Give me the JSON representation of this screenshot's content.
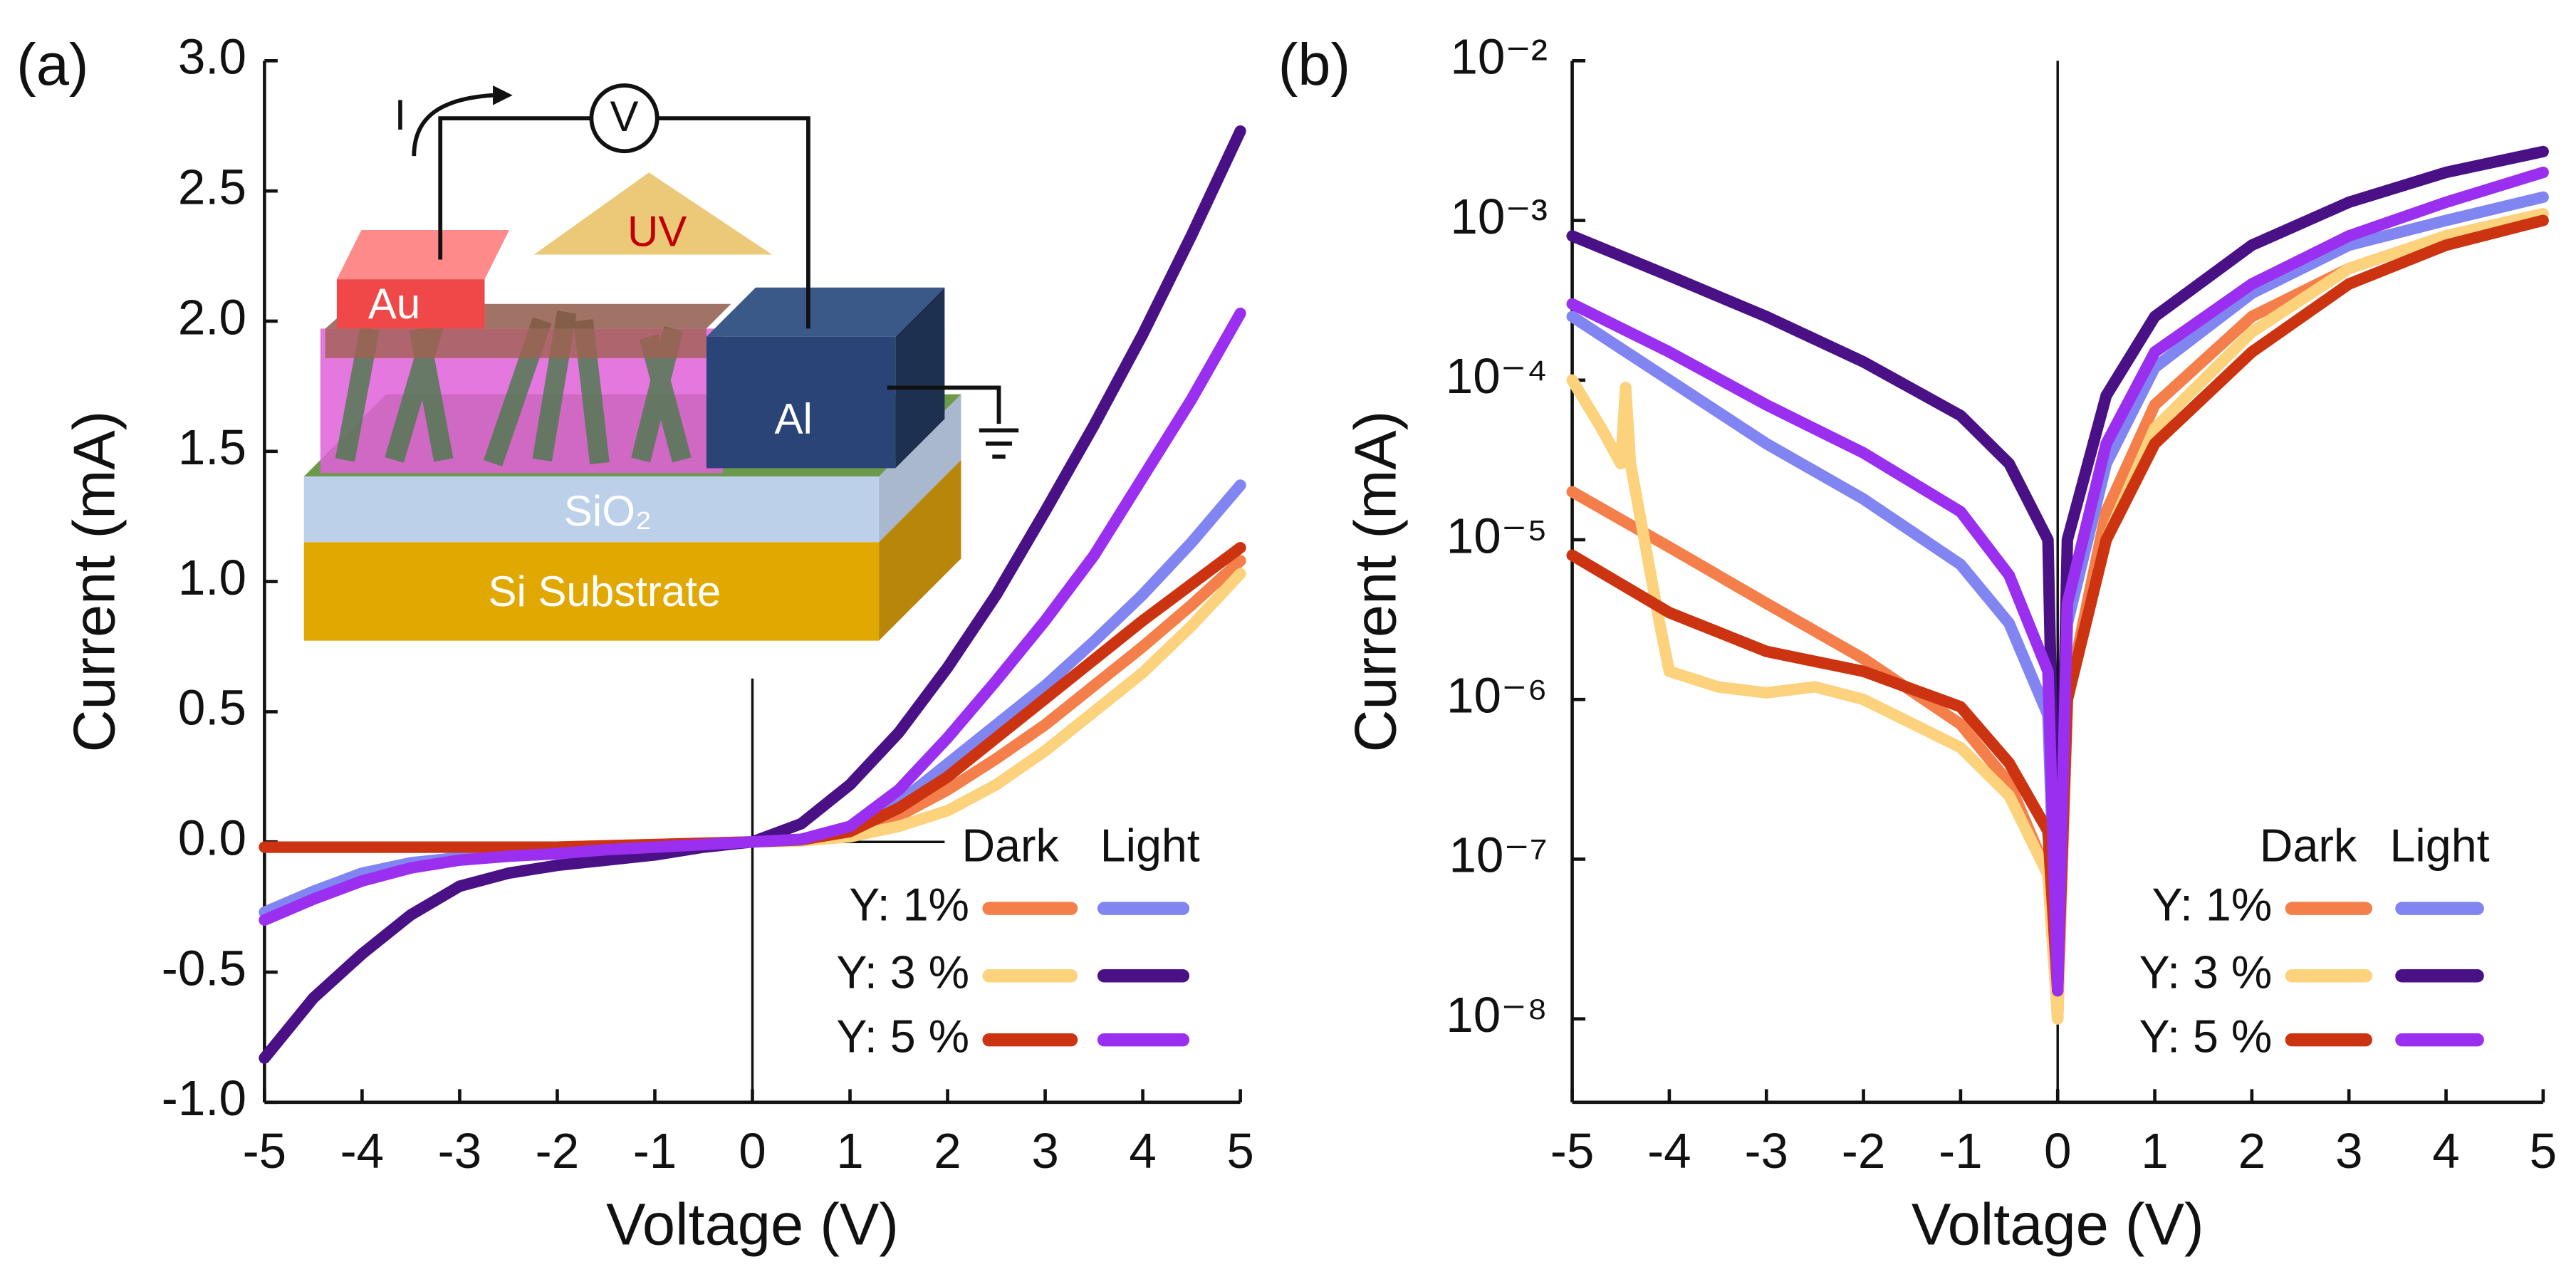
{
  "chart_data": [
    {
      "type": "line",
      "panel": "(a)",
      "xlabel": "Voltage (V)",
      "ylabel": "Current (mA)",
      "xlim": [
        -5,
        5
      ],
      "xticks": [
        -5,
        -4,
        -3,
        -2,
        -1,
        0,
        1,
        2,
        3,
        4,
        5
      ],
      "ylim": [
        -1,
        3
      ],
      "yticks": [
        {
          "value": -1,
          "label": "-1.0"
        },
        {
          "value": -0.5,
          "label": "-0.5"
        },
        {
          "value": 0,
          "label": "0.0"
        },
        {
          "value": 0.5,
          "label": "0.5"
        },
        {
          "value": 1,
          "label": "1.0"
        },
        {
          "value": 1.5,
          "label": "1.5"
        },
        {
          "value": 2,
          "label": "2.0"
        },
        {
          "value": 2.5,
          "label": "2.5"
        },
        {
          "value": 3,
          "label": "3.0"
        }
      ],
      "legend": {
        "columns": [
          "Dark",
          "Light"
        ],
        "rows": [
          "Y: 1%",
          "Y: 3 %",
          "Y: 5 %"
        ]
      },
      "diagram": {
        "current": "I",
        "meter": "V",
        "light": "UV",
        "electrode_1": "Au",
        "electrode_2": "Al",
        "layer": "SiO₂",
        "substrate": "Si Substrate"
      },
      "x": [
        -5,
        -4.5,
        -4,
        -3.5,
        -3,
        -2.5,
        -2,
        -1.5,
        -1,
        -0.5,
        0,
        0.5,
        1,
        1.5,
        2,
        2.5,
        3,
        3.5,
        4,
        4.5,
        5
      ],
      "series": [
        {
          "color": "#f47f4a",
          "values": [
            -0.02,
            -0.02,
            -0.02,
            -0.02,
            -0.02,
            -0.02,
            -0.02,
            -0.015,
            -0.01,
            -0.005,
            0,
            0.005,
            0.03,
            0.1,
            0.2,
            0.32,
            0.45,
            0.6,
            0.75,
            0.91,
            1.08
          ]
        },
        {
          "color": "#8085f2",
          "values": [
            -0.27,
            -0.19,
            -0.12,
            -0.08,
            -0.06,
            -0.05,
            -0.04,
            -0.03,
            -0.02,
            -0.01,
            0,
            0.01,
            0.05,
            0.15,
            0.3,
            0.45,
            0.6,
            0.77,
            0.95,
            1.15,
            1.37
          ]
        },
        {
          "color": "#fdd27c",
          "values": [
            -0.02,
            -0.02,
            -0.02,
            -0.02,
            -0.02,
            -0.02,
            -0.02,
            -0.015,
            -0.01,
            -0.005,
            0,
            0.004,
            0.02,
            0.06,
            0.12,
            0.22,
            0.35,
            0.5,
            0.65,
            0.83,
            1.03
          ]
        },
        {
          "color": "#4a1187",
          "values": [
            -0.83,
            -0.6,
            -0.43,
            -0.28,
            -0.17,
            -0.12,
            -0.09,
            -0.07,
            -0.05,
            -0.02,
            0,
            0.07,
            0.22,
            0.42,
            0.67,
            0.95,
            1.27,
            1.6,
            1.95,
            2.33,
            2.73
          ]
        },
        {
          "color": "#cc3311",
          "values": [
            -0.02,
            -0.02,
            -0.02,
            -0.02,
            -0.02,
            -0.02,
            -0.02,
            -0.015,
            -0.01,
            -0.005,
            0,
            0.008,
            0.04,
            0.13,
            0.25,
            0.4,
            0.55,
            0.7,
            0.85,
            0.99,
            1.13
          ]
        },
        {
          "color": "#9a2ff0",
          "values": [
            -0.3,
            -0.22,
            -0.15,
            -0.1,
            -0.07,
            -0.055,
            -0.045,
            -0.03,
            -0.02,
            -0.01,
            0,
            0.01,
            0.06,
            0.2,
            0.4,
            0.62,
            0.85,
            1.1,
            1.4,
            1.7,
            2.03
          ]
        }
      ]
    },
    {
      "type": "line",
      "panel": "(b)",
      "xlabel": "Voltage (V)",
      "ylabel": "Current (mA)",
      "log_y": true,
      "xlim": [
        -5,
        5
      ],
      "xticks": [
        -5,
        -4,
        -3,
        -2,
        -1,
        0,
        1,
        2,
        3,
        4,
        5
      ],
      "ylim": [
        3e-09,
        0.01
      ],
      "yticks": [
        {
          "value": 1e-08,
          "label": "10⁻⁸"
        },
        {
          "value": 1e-07,
          "label": "10⁻⁷"
        },
        {
          "value": 1e-06,
          "label": "10⁻⁶"
        },
        {
          "value": 1e-05,
          "label": "10⁻⁵"
        },
        {
          "value": 0.0001,
          "label": "10⁻⁴"
        },
        {
          "value": 0.001,
          "label": "10⁻³"
        },
        {
          "value": 0.01,
          "label": "10⁻²"
        }
      ],
      "legend": {
        "columns": [
          "Dark",
          "Light"
        ],
        "rows": [
          "Y: 1%",
          "Y: 3 %",
          "Y: 5 %"
        ]
      },
      "series": [
        {
          "color": "#f47f4a",
          "x": [
            -5,
            -4,
            -3,
            -2,
            -1,
            -0.5,
            -0.1,
            0,
            0.1,
            0.5,
            1,
            2,
            3,
            4,
            5
          ],
          "values": [
            2e-05,
            9e-06,
            4e-06,
            1.8e-06,
            7e-07,
            3e-07,
            8e-08,
            1e-08,
            1e-06,
            1.5e-05,
            7e-05,
            0.00025,
            0.0005,
            0.0008,
            0.0011
          ]
        },
        {
          "color": "#8085f2",
          "x": [
            -5,
            -4,
            -3,
            -2,
            -1,
            -0.5,
            -0.1,
            0,
            0.1,
            0.5,
            1,
            2,
            3,
            4,
            5
          ],
          "values": [
            0.00025,
            0.0001,
            4e-05,
            1.8e-05,
            7e-06,
            3e-06,
            8e-07,
            1.5e-08,
            3e-06,
            3e-05,
            0.00012,
            0.00035,
            0.0007,
            0.001,
            0.0014
          ]
        },
        {
          "color": "#fdd27c",
          "x": [
            -5,
            -4.7,
            -4.5,
            -4.45,
            -4.4,
            -4.1,
            -4,
            -3.5,
            -3,
            -2.5,
            -2,
            -1,
            -0.5,
            -0.1,
            0,
            0.1,
            0.5,
            1,
            2,
            3,
            4,
            5
          ],
          "values": [
            0.0001,
            5e-05,
            3e-05,
            9e-05,
            3e-05,
            3e-06,
            1.5e-06,
            1.2e-06,
            1.1e-06,
            1.2e-06,
            1e-06,
            5e-07,
            2.5e-07,
            8e-08,
            1e-08,
            1e-06,
            1e-05,
            5e-05,
            0.0002,
            0.0005,
            0.0008,
            0.0011
          ]
        },
        {
          "color": "#4a1187",
          "x": [
            -5,
            -4,
            -3,
            -2,
            -1,
            -0.5,
            -0.1,
            0,
            0.1,
            0.5,
            1,
            2,
            3,
            4,
            5
          ],
          "values": [
            0.0008,
            0.00045,
            0.00025,
            0.00013,
            6e-05,
            3e-05,
            1e-05,
            1.5e-08,
            1e-05,
            8e-05,
            0.00025,
            0.0007,
            0.0013,
            0.002,
            0.0027
          ]
        },
        {
          "color": "#cc3311",
          "x": [
            -5,
            -4,
            -3,
            -2,
            -1,
            -0.5,
            -0.1,
            0,
            0.1,
            0.5,
            1,
            2,
            3,
            4,
            5
          ],
          "values": [
            8e-06,
            3.5e-06,
            2e-06,
            1.5e-06,
            9e-07,
            4e-07,
            1.5e-07,
            1.5e-08,
            1e-06,
            1e-05,
            4e-05,
            0.00015,
            0.0004,
            0.0007,
            0.001
          ]
        },
        {
          "color": "#9a2ff0",
          "x": [
            -5,
            -4,
            -3,
            -2,
            -1,
            -0.5,
            -0.1,
            0,
            0.1,
            0.5,
            1,
            2,
            3,
            4,
            5
          ],
          "values": [
            0.0003,
            0.00015,
            7e-05,
            3.5e-05,
            1.5e-05,
            6e-06,
            1.5e-06,
            1.5e-08,
            4e-06,
            4e-05,
            0.00015,
            0.0004,
            0.0008,
            0.0013,
            0.002
          ]
        }
      ]
    }
  ]
}
